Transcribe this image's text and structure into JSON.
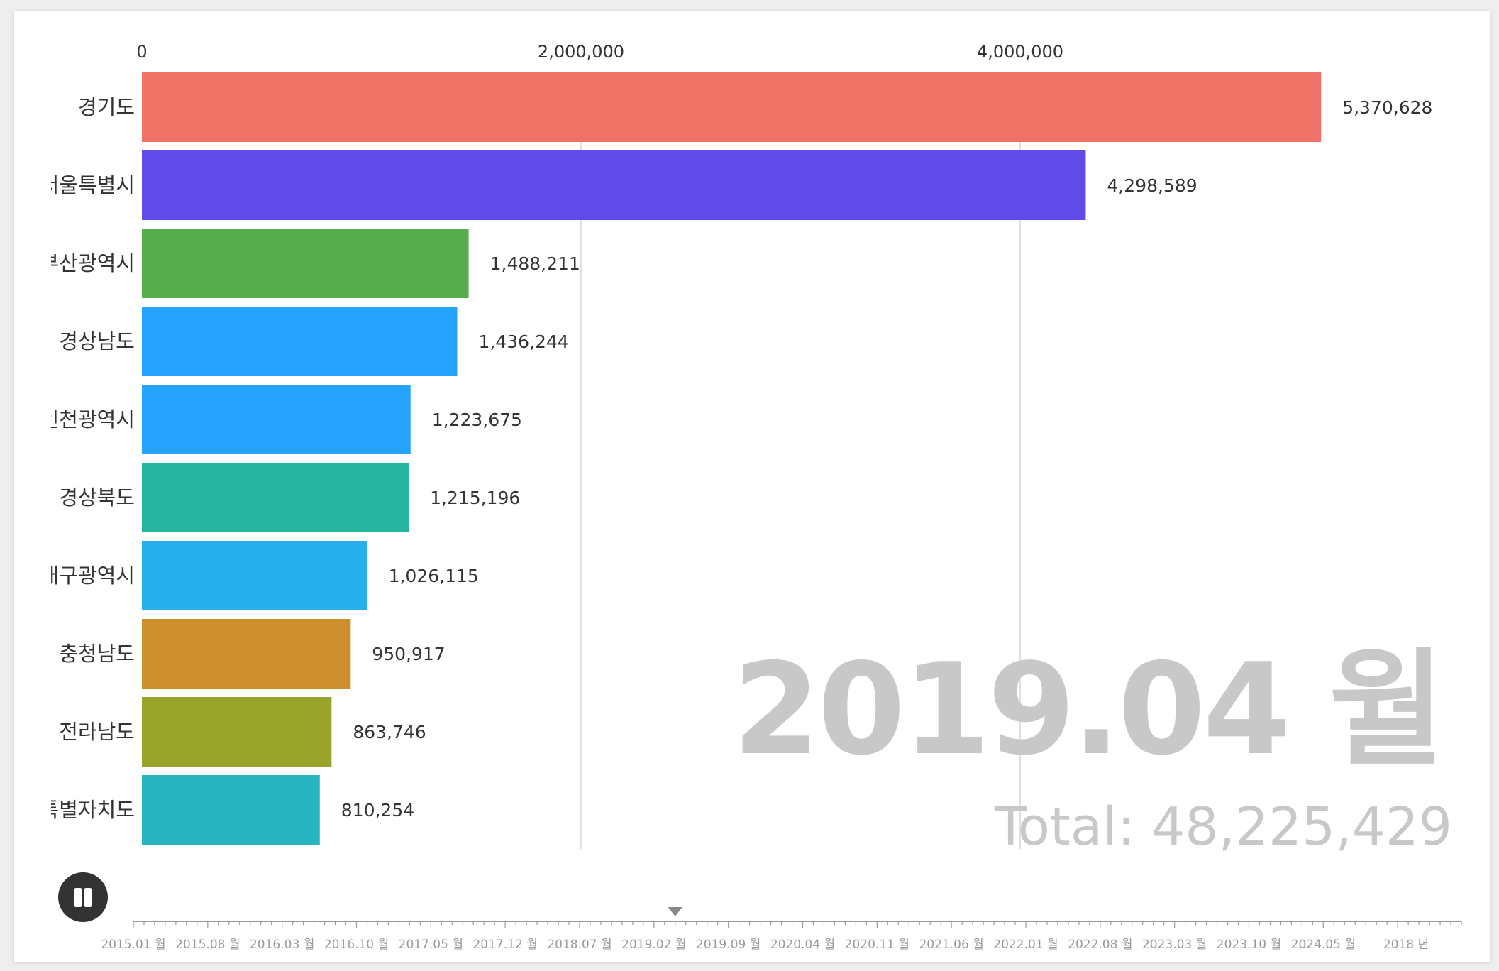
{
  "chart_data": {
    "type": "bar",
    "orientation": "horizontal",
    "categories": [
      "경기도",
      "서울특별시",
      "부산광역시",
      "경상남도",
      "인천광역시",
      "경상북도",
      "대구광역시",
      "충청남도",
      "전라남도",
      "제주특별자치도"
    ],
    "values": [
      5370628,
      4298589,
      1488211,
      1436244,
      1223675,
      1215196,
      1026115,
      950917,
      863746,
      810254
    ],
    "value_labels": [
      "5,370,628",
      "4,298,589",
      "1,488,211",
      "1,436,244",
      "1,223,675",
      "1,215,196",
      "1,026,115",
      "950,917",
      "863,746",
      "810,254"
    ],
    "colors": [
      "#ee7366",
      "#604aea",
      "#55ad4e",
      "#25a2fd",
      "#25a2fd",
      "#27b49e",
      "#27aeec",
      "#cd8e2c",
      "#98a42a",
      "#27b3c0"
    ],
    "x_ticks": [
      0,
      2000000,
      4000000
    ],
    "x_tick_labels": [
      "0",
      "2,000,000",
      "4,000,000"
    ],
    "xlim": [
      0,
      6000000
    ],
    "axis_position": "top",
    "grid": true,
    "legend": "none"
  },
  "period": {
    "label": "2019.04 월",
    "total_text": "Total: 48,225,429"
  },
  "controls": {
    "play_state": "playing",
    "play_button_icon": "pause-icon"
  },
  "timeline": {
    "labels": [
      "2015.01 월",
      "2015.08 월",
      "2016.03 월",
      "2016.10 월",
      "2017.05 월",
      "2017.12 월",
      "2018.07 월",
      "2019.02 월",
      "2019.09 월",
      "2020.04 월",
      "2020.11 월",
      "2021.06 월",
      "2022.01 월",
      "2022.08 월",
      "2023.03 월",
      "2023.10 월",
      "2024.05 월",
      "2018 년"
    ],
    "total_steps": 126,
    "current_step": 51,
    "marker_icon": "triangle-down-icon"
  },
  "colors": {
    "grid": "#d6d6d6",
    "watermark": "#c8c8c8",
    "text": "#333333",
    "timeline": "#9a9a9a"
  }
}
